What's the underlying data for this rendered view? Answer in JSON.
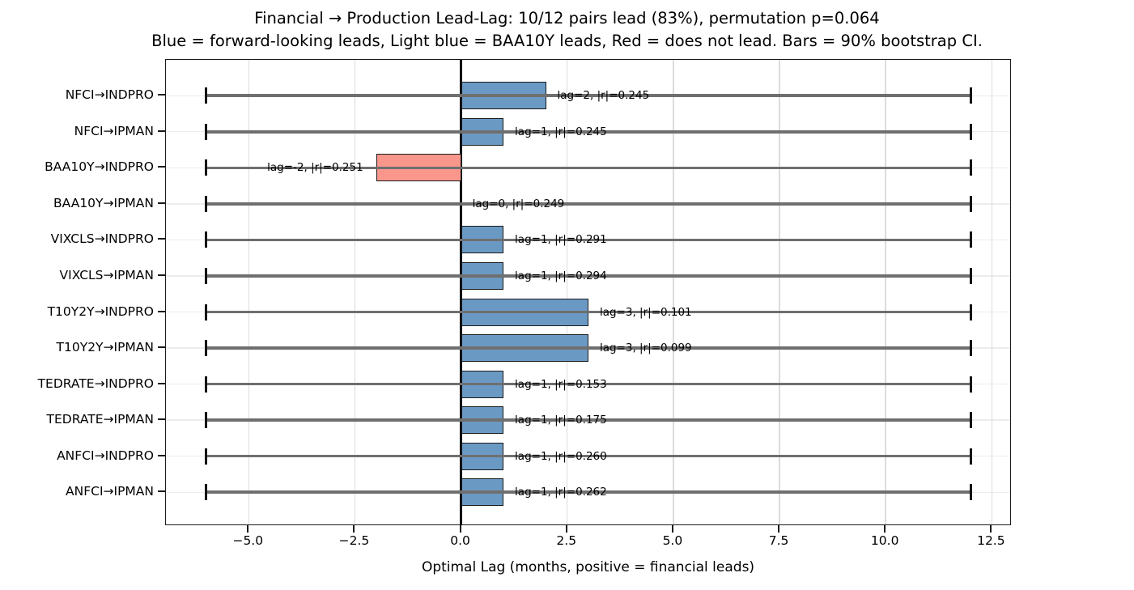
{
  "title": {
    "line1": "Financial → Production Lead-Lag: 10/12 pairs lead (83%), permutation p=0.064",
    "line2": "Blue = forward-looking leads, Light blue = BAA10Y leads, Red = does not lead. Bars = 90% bootstrap CI."
  },
  "xlabel": "Optimal Lag (months, positive = financial leads)",
  "colors": {
    "lead": "#6a9ac4",
    "baa10y_lead": "#a9cbe2",
    "no_lead": "#f9978c",
    "bar_edge": "#1a1a1a",
    "whisker_line": "#6f6f6f",
    "whisker_cap": "#141414",
    "zero_line": "#000000",
    "grid_vertical": "#dcdcdc",
    "grid_horizontal": "#ececec"
  },
  "chart_data": {
    "type": "bar",
    "orientation": "horizontal",
    "title": "Financial → Production Lead-Lag: 10/12 pairs lead (83%), permutation p=0.064",
    "subtitle": "Blue = forward-looking leads, Light blue = BAA10Y leads, Red = does not lead. Bars = 90% bootstrap CI.",
    "xlabel": "Optimal Lag (months, positive = financial leads)",
    "xlim": [
      -6.95,
      12.97
    ],
    "grid": true,
    "x_ticks": [
      {
        "value": -5.0,
        "label": "−5.0"
      },
      {
        "value": -2.5,
        "label": "−2.5"
      },
      {
        "value": 0.0,
        "label": "0.0"
      },
      {
        "value": 2.5,
        "label": "2.5"
      },
      {
        "value": 5.0,
        "label": "5.0"
      },
      {
        "value": 7.5,
        "label": "7.5"
      },
      {
        "value": 10.0,
        "label": "10.0"
      },
      {
        "value": 12.5,
        "label": "12.5"
      }
    ],
    "rows": [
      {
        "pair": "NFCI→INDPRO",
        "lag": 2,
        "abs_r": 0.245,
        "label": "lag=2, |r|=0.245",
        "group": "lead",
        "ci": [
          -6,
          12
        ]
      },
      {
        "pair": "NFCI→IPMAN",
        "lag": 1,
        "abs_r": 0.245,
        "label": "lag=1, |r|=0.245",
        "group": "lead",
        "ci": [
          -6,
          12
        ]
      },
      {
        "pair": "BAA10Y→INDPRO",
        "lag": -2,
        "abs_r": 0.251,
        "label": "lag=-2, |r|=0.251",
        "group": "no_lead",
        "ci": [
          -6,
          12
        ]
      },
      {
        "pair": "BAA10Y→IPMAN",
        "lag": 0,
        "abs_r": 0.249,
        "label": "lag=0, |r|=0.249",
        "group": "baa10y_lead",
        "ci": [
          -6,
          12
        ]
      },
      {
        "pair": "VIXCLS→INDPRO",
        "lag": 1,
        "abs_r": 0.291,
        "label": "lag=1, |r|=0.291",
        "group": "lead",
        "ci": [
          -6,
          12
        ]
      },
      {
        "pair": "VIXCLS→IPMAN",
        "lag": 1,
        "abs_r": 0.294,
        "label": "lag=1, |r|=0.294",
        "group": "lead",
        "ci": [
          -6,
          12
        ]
      },
      {
        "pair": "T10Y2Y→INDPRO",
        "lag": 3,
        "abs_r": 0.101,
        "label": "lag=3, |r|=0.101",
        "group": "lead",
        "ci": [
          -6,
          12
        ]
      },
      {
        "pair": "T10Y2Y→IPMAN",
        "lag": 3,
        "abs_r": 0.099,
        "label": "lag=3, |r|=0.099",
        "group": "lead",
        "ci": [
          -6,
          12
        ]
      },
      {
        "pair": "TEDRATE→INDPRO",
        "lag": 1,
        "abs_r": 0.153,
        "label": "lag=1, |r|=0.153",
        "group": "lead",
        "ci": [
          -6,
          12
        ]
      },
      {
        "pair": "TEDRATE→IPMAN",
        "lag": 1,
        "abs_r": 0.175,
        "label": "lag=1, |r|=0.175",
        "group": "lead",
        "ci": [
          -6,
          12
        ]
      },
      {
        "pair": "ANFCI→INDPRO",
        "lag": 1,
        "abs_r": 0.26,
        "label": "lag=1, |r|=0.260",
        "group": "lead",
        "ci": [
          -6,
          12
        ]
      },
      {
        "pair": "ANFCI→IPMAN",
        "lag": 1,
        "abs_r": 0.262,
        "label": "lag=1, |r|=0.262",
        "group": "lead",
        "ci": [
          -6,
          12
        ]
      }
    ]
  }
}
